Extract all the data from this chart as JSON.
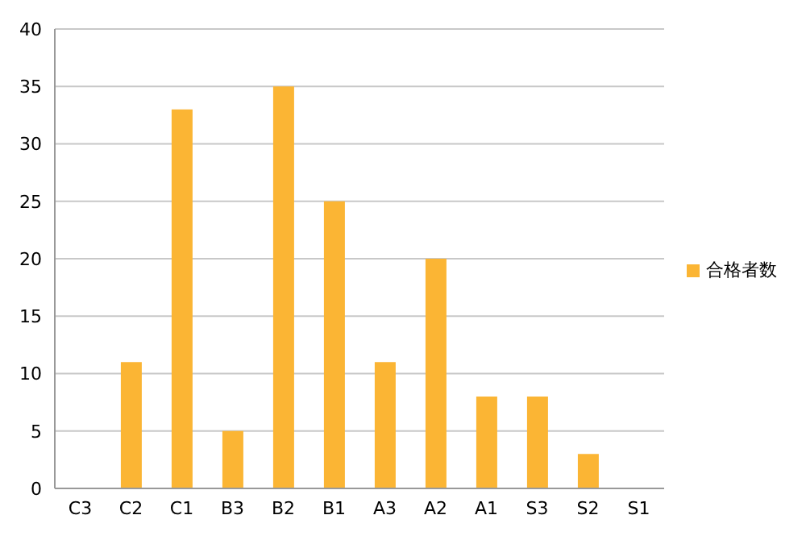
{
  "chart_data": {
    "type": "bar",
    "categories": [
      "C3",
      "C2",
      "C1",
      "B3",
      "B2",
      "B1",
      "A3",
      "A2",
      "A1",
      "S3",
      "S2",
      "S1"
    ],
    "series": [
      {
        "name": "合格者数",
        "color": "#fbb534",
        "values": [
          0,
          11,
          33,
          5,
          35,
          25,
          11,
          20,
          8,
          8,
          3,
          0
        ]
      }
    ],
    "ylim": [
      0,
      40
    ],
    "yticks": [
      0,
      5,
      10,
      15,
      20,
      25,
      30,
      35,
      40
    ],
    "grid": "y",
    "legend": "right"
  }
}
